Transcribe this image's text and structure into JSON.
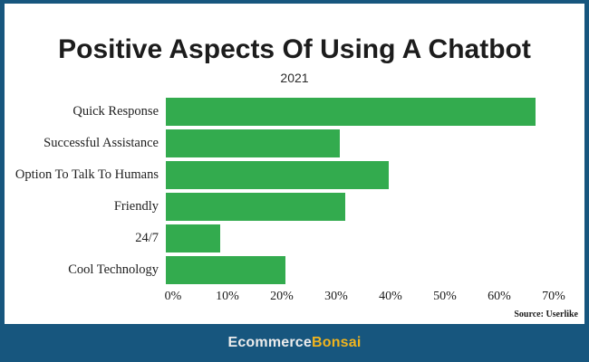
{
  "page": {
    "border_color": "#17567E",
    "canvas_background": "#FFFFFF"
  },
  "header": {
    "title": "Positive Aspects Of Using A Chatbot",
    "subtitle": "2021"
  },
  "source_note": "Source: Userlike",
  "footer": {
    "brand_primary": "Ecommerce",
    "brand_secondary": "Bonsai",
    "brand_primary_color": "#ECECEC",
    "brand_secondary_color": "#F0B41E"
  },
  "chart_data": {
    "type": "bar",
    "orientation": "horizontal",
    "title": "Positive Aspects Of Using A Chatbot",
    "subtitle": "2021",
    "categories": [
      "Quick Response",
      "Successful Assistance",
      "Option To Talk To Humans",
      "Friendly",
      "24/7",
      "Cool Technology"
    ],
    "values": [
      68,
      32,
      41,
      33,
      10,
      22
    ],
    "unit": "%",
    "xlabel": "",
    "ylabel": "",
    "xlim": [
      0,
      70
    ],
    "x_ticks": [
      "0%",
      "10%",
      "20%",
      "30%",
      "40%",
      "50%",
      "60%",
      "70%"
    ],
    "bar_color": "#33AB4E",
    "grid": false,
    "legend": false,
    "source": "Source: Userlike"
  }
}
